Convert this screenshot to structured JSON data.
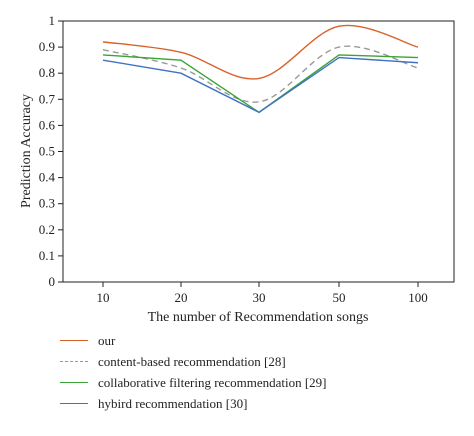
{
  "chart_data": {
    "type": "line",
    "categories": [
      "10",
      "20",
      "30",
      "50",
      "100"
    ],
    "xlabel": "The number of Recommendation songs",
    "ylabel": "Prediction Accuracy",
    "ylim": [
      0,
      1
    ],
    "yticks": [
      "0",
      "0.1",
      "0.2",
      "0.3",
      "0.4",
      "0.5",
      "0.6",
      "0.7",
      "0.8",
      "0.9",
      "1"
    ],
    "grid": false,
    "legend_position": "bottom",
    "series": [
      {
        "name": "our",
        "values": [
          0.92,
          0.88,
          0.78,
          0.98,
          0.9
        ],
        "color": "#d9622b",
        "dash": "solid",
        "smooth": true
      },
      {
        "name": "content-based recommendation [28]",
        "values": [
          0.89,
          0.82,
          0.69,
          0.9,
          0.82
        ],
        "color": "#999999",
        "dash": "dashed",
        "smooth": true
      },
      {
        "name": "collaborative filtering recommendation [29]",
        "values": [
          0.87,
          0.85,
          0.65,
          0.87,
          0.86
        ],
        "color": "#3aa336",
        "dash": "solid",
        "smooth": false
      },
      {
        "name": "hybird recommendation [30]",
        "values": [
          0.85,
          0.8,
          0.65,
          0.86,
          0.84
        ],
        "color": "#3f72c4",
        "dash": "solid",
        "smooth": false
      }
    ]
  }
}
